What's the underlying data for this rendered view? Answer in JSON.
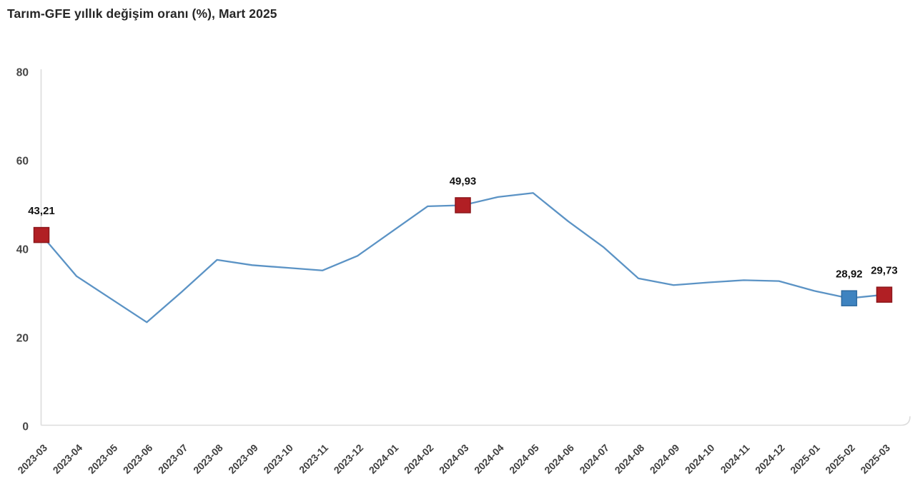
{
  "page": {
    "background": "#ffffff"
  },
  "header": {
    "title": "Tarım-GFE yıllık değişim oranı (%), Mart 2025"
  },
  "colors": {
    "line": "#5b93c5",
    "axis_line": "#dcdcdc",
    "y_tick_text": "#474747",
    "x_tick_text": "#404040",
    "data_label_text": "#111111",
    "marker_red": "#b11f24",
    "marker_red_border": "#8c171b",
    "marker_blue": "#3e83c0",
    "marker_blue_border": "#2e6aa0"
  },
  "chart_data": {
    "type": "line",
    "title": "Tarım-GFE yıllık değişim oranı (%), Mart 2025",
    "xlabel": "",
    "ylabel": "",
    "ylim": [
      0,
      80
    ],
    "yticks": [
      80,
      60,
      40,
      20,
      0
    ],
    "grid": false,
    "legend": "none",
    "decimal_separator": ",",
    "categories": [
      "2023-03",
      "2023-04",
      "2023-05",
      "2023-06",
      "2023-07",
      "2023-08",
      "2023-09",
      "2023-10",
      "2023-11",
      "2023-12",
      "2024-01",
      "2024-02",
      "2024-03",
      "2024-04",
      "2024-05",
      "2024-06",
      "2024-07",
      "2024-08",
      "2024-09",
      "2024-10",
      "2024-11",
      "2024-12",
      "2025-01",
      "2025-02",
      "2025-03"
    ],
    "values": [
      43.21,
      33.9,
      28.7,
      23.5,
      30.4,
      37.6,
      36.4,
      35.8,
      35.2,
      38.5,
      44.1,
      49.7,
      49.93,
      51.8,
      52.7,
      46.3,
      40.5,
      33.4,
      31.9,
      32.5,
      33.0,
      32.8,
      30.6,
      28.92,
      29.73
    ],
    "annotations": [
      {
        "category": "2023-03",
        "value": 43.21,
        "label": "43,21",
        "marker": "red"
      },
      {
        "category": "2024-03",
        "value": 49.93,
        "label": "49,93",
        "marker": "red"
      },
      {
        "category": "2025-02",
        "value": 28.92,
        "label": "28,92",
        "marker": "blue"
      },
      {
        "category": "2025-03",
        "value": 29.73,
        "label": "29,73",
        "marker": "red"
      }
    ]
  }
}
